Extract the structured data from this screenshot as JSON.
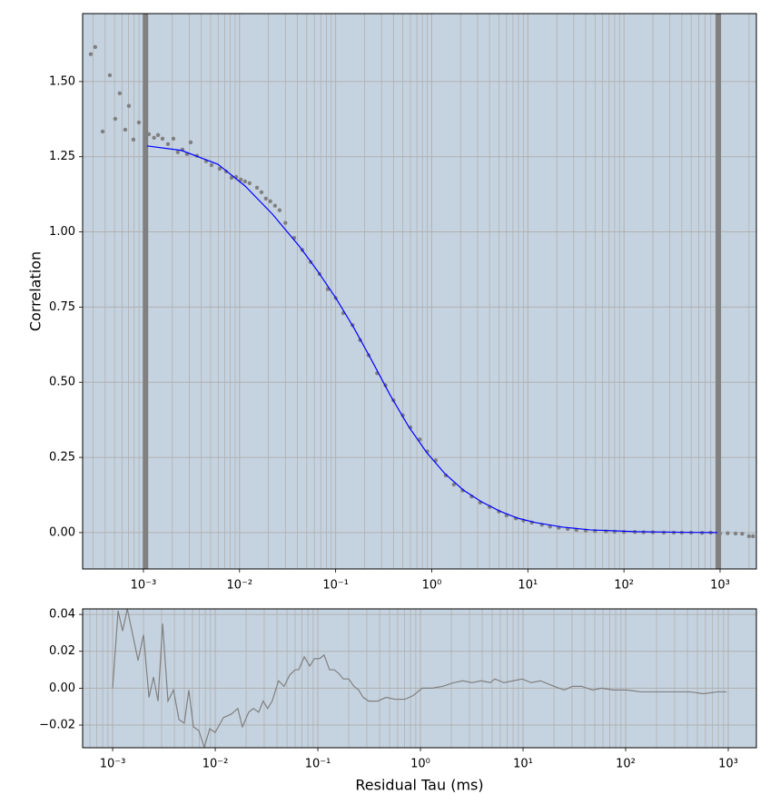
{
  "chart_data": [
    {
      "type": "line",
      "xscale": "log",
      "xlim": [
        0.000233,
        2388
      ],
      "ylim": [
        -0.121,
        1.726
      ],
      "xticks": [
        {
          "value": 0.001,
          "label": "10⁻³"
        },
        {
          "value": 0.01,
          "label": "10⁻²"
        },
        {
          "value": 0.1,
          "label": "10⁻¹"
        },
        {
          "value": 1,
          "label": "10⁰"
        },
        {
          "value": 10,
          "label": "10¹"
        },
        {
          "value": 100,
          "label": "10²"
        },
        {
          "value": 1000,
          "label": "10³"
        }
      ],
      "yticks": [
        {
          "value": 0,
          "label": "0.00"
        },
        {
          "value": 0.25,
          "label": "0.25"
        },
        {
          "value": 0.5,
          "label": "0.50"
        },
        {
          "value": 0.75,
          "label": "0.75"
        },
        {
          "value": 1,
          "label": "1.00"
        },
        {
          "value": 1.25,
          "label": "1.25"
        },
        {
          "value": 1.5,
          "label": "1.50"
        }
      ],
      "grid": true,
      "minor_grid": true,
      "facecolor": "#c5d3e0",
      "y_label": "Correlation",
      "fit_range": [
        0.00105,
        960
      ],
      "fit_range_color": "#808080",
      "series": [
        {
          "marker": true,
          "color": "#808080",
          "x": [
            0.000283,
            0.000315,
            0.000376,
            0.000447,
            0.000509,
            0.000567,
            0.000647,
            0.000706,
            0.000787,
            0.000897,
            0.00114,
            0.00129,
            0.00142,
            0.00158,
            0.0018,
            0.00205,
            0.00228,
            0.00255,
            0.00284,
            0.0031,
            0.00361,
            0.00449,
            0.00511,
            0.00622,
            0.00724,
            0.00825,
            0.00922,
            0.0103,
            0.0114,
            0.0127,
            0.0152,
            0.0169,
            0.0188,
            0.0209,
            0.0234,
            0.0261,
            0.03,
            0.037,
            0.045,
            0.055,
            0.068,
            0.083,
            0.1,
            0.12,
            0.15,
            0.18,
            0.22,
            0.27,
            0.33,
            0.4,
            0.5,
            0.6,
            0.75,
            0.9,
            1.1,
            1.4,
            1.7,
            2.1,
            2.6,
            3.2,
            4,
            5,
            6,
            7.5,
            9,
            11,
            14,
            17,
            21,
            26,
            32,
            40,
            50,
            65,
            80,
            100,
            130,
            160,
            200,
            260,
            330,
            400,
            500,
            650,
            800,
            1000,
            1200,
            1450,
            1700,
            2000,
            2200
          ],
          "values": [
            1.591,
            1.615,
            1.334,
            1.521,
            1.376,
            1.461,
            1.34,
            1.419,
            1.307,
            1.364,
            1.325,
            1.313,
            1.322,
            1.31,
            1.292,
            1.31,
            1.265,
            1.274,
            1.259,
            1.298,
            1.253,
            1.235,
            1.222,
            1.21,
            1.201,
            1.18,
            1.183,
            1.174,
            1.168,
            1.162,
            1.147,
            1.132,
            1.111,
            1.102,
            1.087,
            1.072,
            1.03,
            0.98,
            0.94,
            0.9,
            0.86,
            0.81,
            0.78,
            0.73,
            0.69,
            0.64,
            0.59,
            0.53,
            0.49,
            0.44,
            0.39,
            0.35,
            0.31,
            0.27,
            0.24,
            0.19,
            0.16,
            0.14,
            0.12,
            0.1,
            0.085,
            0.07,
            0.057,
            0.047,
            0.04,
            0.033,
            0.026,
            0.02,
            0.016,
            0.012,
            0.009,
            0.007,
            0.005,
            0.004,
            0.003,
            0.002,
            0.002,
            0.001,
            0.001,
            0,
            0,
            0,
            0,
            -0.001,
            0,
            -0.003,
            -0.002,
            -0.003,
            -0.004,
            -0.012,
            -0.012
          ]
        },
        {
          "color": "#0000ff",
          "x": [
            0.00109,
            0.00249,
            0.00596,
            0.0114,
            0.022,
            0.0422,
            0.0652,
            0.101,
            0.156,
            0.24,
            0.371,
            0.574,
            0.887,
            1.37,
            2.12,
            3.27,
            5.06,
            7.82,
            12.1,
            23.2,
            44.6,
            132,
            393,
            938
          ],
          "values": [
            1.286,
            1.271,
            1.225,
            1.153,
            1.059,
            0.951,
            0.869,
            0.779,
            0.679,
            0.57,
            0.456,
            0.353,
            0.266,
            0.196,
            0.142,
            0.103,
            0.072,
            0.048,
            0.033,
            0.018,
            0.009,
            0.003,
            0.001,
            0
          ]
        }
      ]
    },
    {
      "type": "line",
      "xscale": "log",
      "xlim": [
        0.00051,
        1880
      ],
      "ylim": [
        -0.0323,
        0.043
      ],
      "xticks": [
        {
          "value": 0.001,
          "label": "10⁻³"
        },
        {
          "value": 0.01,
          "label": "10⁻²"
        },
        {
          "value": 0.1,
          "label": "10⁻¹"
        },
        {
          "value": 1,
          "label": "10⁰"
        },
        {
          "value": 10,
          "label": "10¹"
        },
        {
          "value": 100,
          "label": "10²"
        },
        {
          "value": 1000,
          "label": "10³"
        }
      ],
      "yticks": [
        {
          "value": -0.02,
          "label": "−0.02"
        },
        {
          "value": 0,
          "label": "0.00"
        },
        {
          "value": 0.02,
          "label": "0.02"
        },
        {
          "value": 0.04,
          "label": "0.04"
        }
      ],
      "grid": true,
      "minor_grid": true,
      "facecolor": "#c5d3e0",
      "x_label": "Residual Tau (ms)",
      "series": [
        {
          "color": "#808080",
          "x": [
            0.001,
            0.00113,
            0.00125,
            0.00139,
            0.00157,
            0.00177,
            0.002,
            0.00226,
            0.0025,
            0.00277,
            0.00307,
            0.00346,
            0.00392,
            0.00443,
            0.00499,
            0.00553,
            0.00613,
            0.00692,
            0.00782,
            0.00884,
            0.00999,
            0.012,
            0.0144,
            0.0166,
            0.0184,
            0.0212,
            0.0235,
            0.0265,
            0.0293,
            0.0324,
            0.0359,
            0.0414,
            0.0469,
            0.053,
            0.06,
            0.065,
            0.0737,
            0.0835,
            0.0923,
            0.104,
            0.115,
            0.13,
            0.144,
            0.16,
            0.177,
            0.2,
            0.225,
            0.25,
            0.277,
            0.313,
            0.384,
            0.461,
            0.567,
            0.708,
            0.85,
            1.04,
            1.3,
            1.65,
            2.11,
            2.6,
            3.18,
            3.9,
            4.8,
            5.3,
            6.5,
            8,
            9.8,
            12,
            14.8,
            18.1,
            22.3,
            25.2,
            30.3,
            37.2,
            47.6,
            58.5,
            76.3,
            103,
            140,
            190,
            285,
            425,
            575,
            785,
            963
          ],
          "values": [
            0,
            0.042,
            0.031,
            0.043,
            0.029,
            0.015,
            0.029,
            -0.005,
            0.006,
            -0.007,
            0.035,
            -0.007,
            -0.001,
            -0.017,
            -0.019,
            -0.001,
            -0.021,
            -0.023,
            -0.032,
            -0.022,
            -0.024,
            -0.016,
            -0.014,
            -0.011,
            -0.021,
            -0.013,
            -0.011,
            -0.013,
            -0.007,
            -0.011,
            -0.007,
            0.004,
            0.001,
            0.007,
            0.01,
            0.01,
            0.017,
            0.012,
            0.016,
            0.016,
            0.018,
            0.01,
            0.01,
            0.008,
            0.005,
            0.005,
            0.001,
            -0.001,
            -0.005,
            -0.007,
            -0.007,
            -0.005,
            -0.006,
            -0.006,
            -0.004,
            0,
            0,
            0.001,
            0.003,
            0.004,
            0.003,
            0.004,
            0.003,
            0.005,
            0.003,
            0.004,
            0.005,
            0.003,
            0.004,
            0.002,
            0,
            -0.001,
            0.001,
            0.001,
            -0.001,
            0,
            -0.001,
            -0.001,
            -0.002,
            -0.002,
            -0.002,
            -0.002,
            -0.003,
            -0.002,
            -0.002
          ]
        }
      ]
    }
  ]
}
